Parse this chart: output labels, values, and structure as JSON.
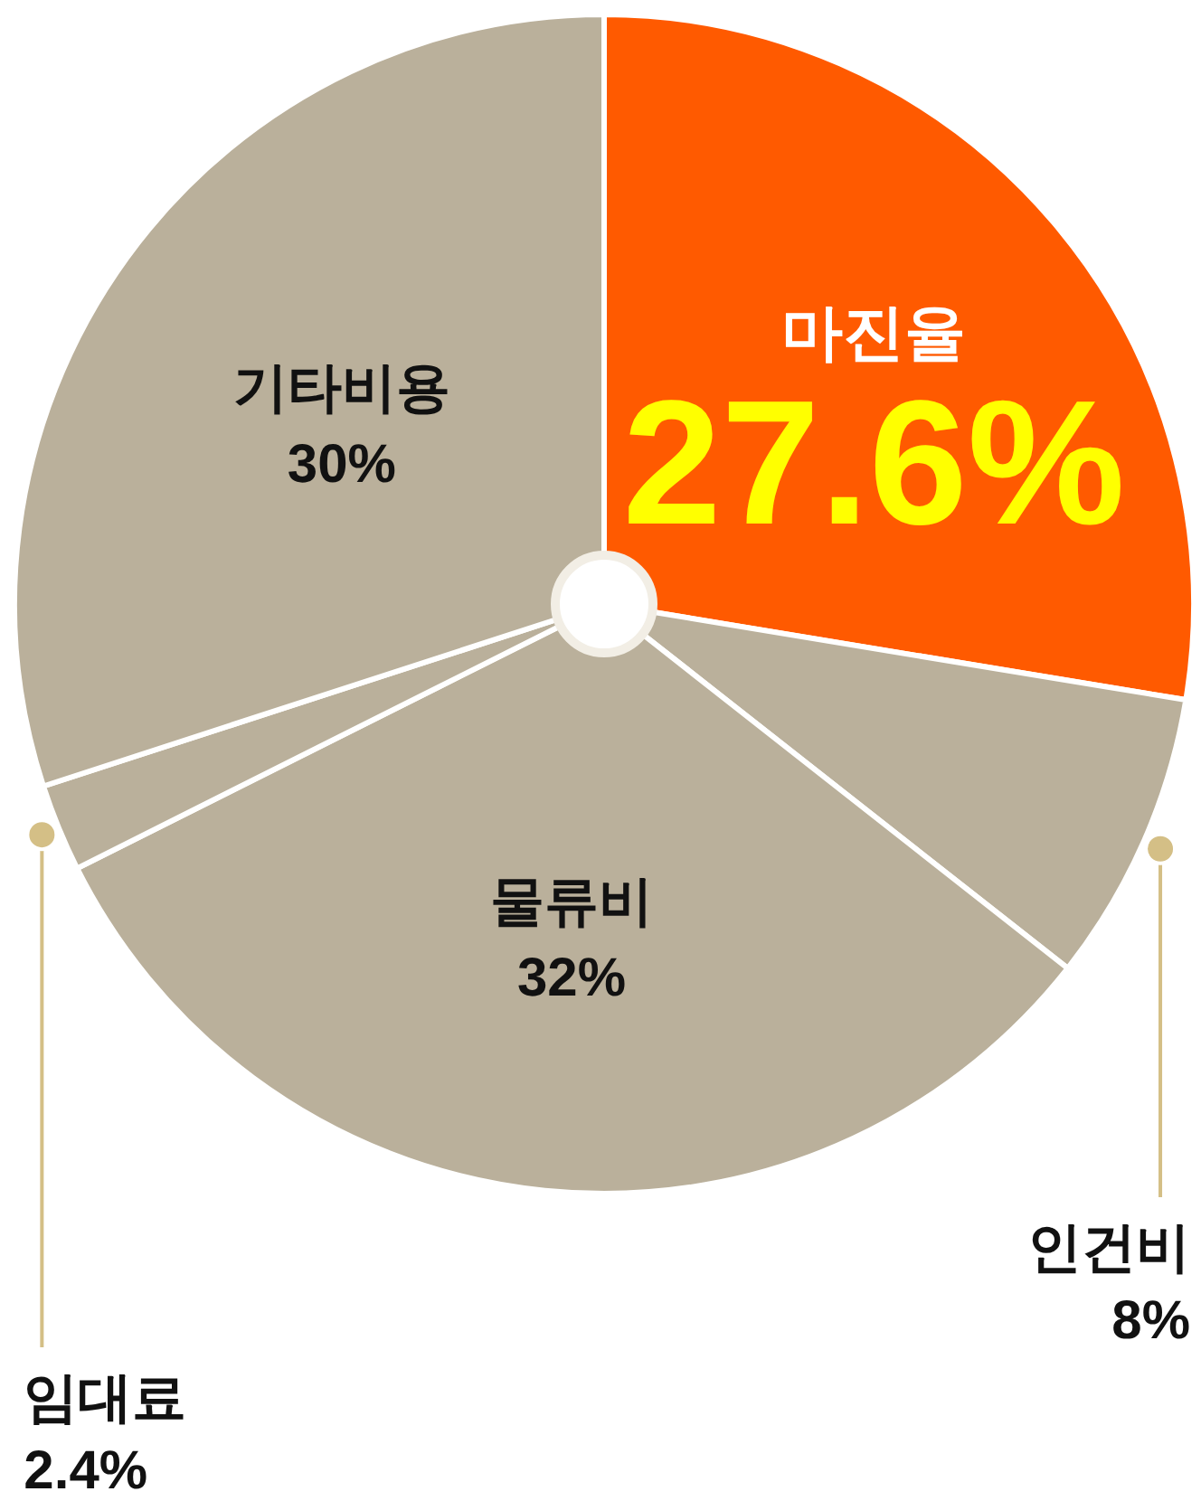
{
  "chart_data": {
    "type": "pie",
    "categories": [
      "마진율",
      "인건비",
      "물류비",
      "임대료",
      "기타비용"
    ],
    "values": [
      27.6,
      8,
      32,
      2.4,
      30
    ],
    "value_labels": [
      "27.6%",
      "8%",
      "32%",
      "2.4%",
      "30%"
    ],
    "colors": [
      "#ff5a00",
      "#bab09b",
      "#bab09b",
      "#bab09b",
      "#bab09b"
    ]
  }
}
